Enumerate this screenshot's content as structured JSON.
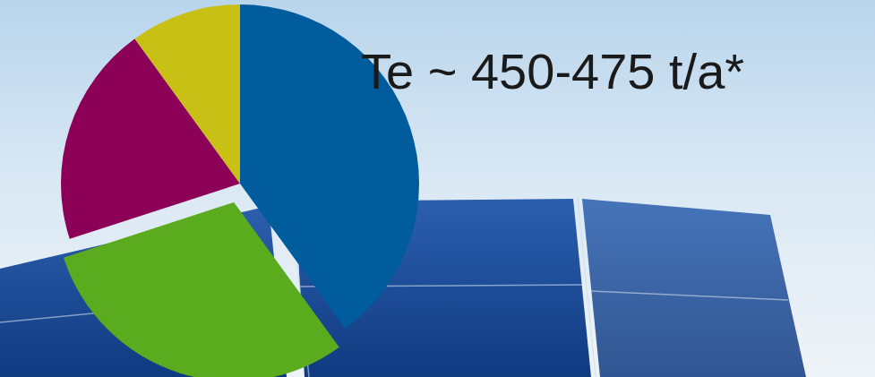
{
  "chart_data": {
    "type": "pie",
    "title": "Te ~ 450-475 t/a*",
    "values": [
      40,
      30,
      20,
      10
    ],
    "colors": [
      "#005c9c",
      "#5aab1e",
      "#8c0057",
      "#c8c014"
    ]
  }
}
